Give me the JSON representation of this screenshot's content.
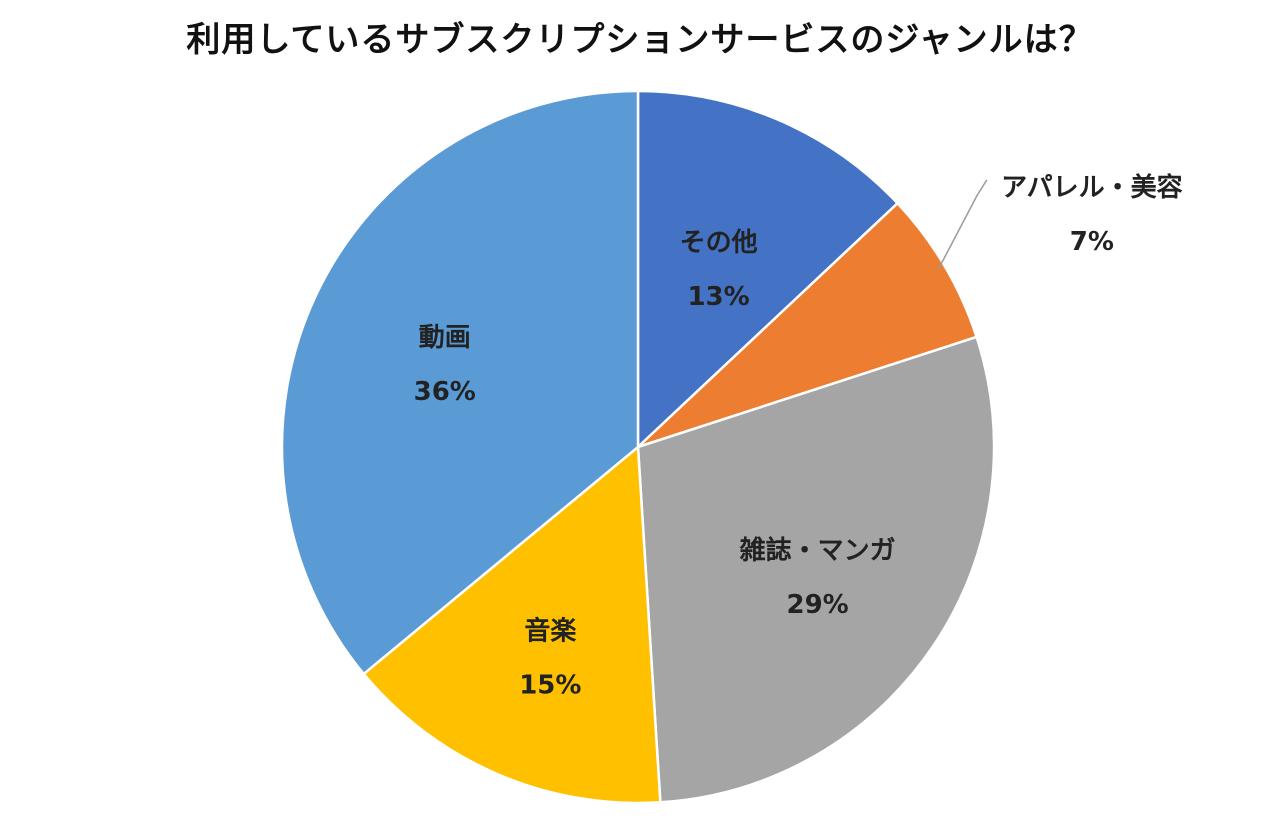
{
  "chart_data": {
    "type": "pie",
    "title": "利用しているサブスクリプションサービスのジャンルは？",
    "categories": [
      "その他",
      "アパレル・美容",
      "雑誌・マンガ",
      "音楽",
      "動画"
    ],
    "values": [
      13,
      7,
      29,
      15,
      36
    ],
    "value_labels": [
      "13%",
      "7%",
      "29%",
      "15%",
      "36%"
    ],
    "unit": "%",
    "start": "12 o'clock, clockwise",
    "colors": [
      "#4472C4",
      "#ED7D31",
      "#A5A5A5",
      "#FFC000",
      "#5B9BD5"
    ],
    "legend": "none"
  }
}
